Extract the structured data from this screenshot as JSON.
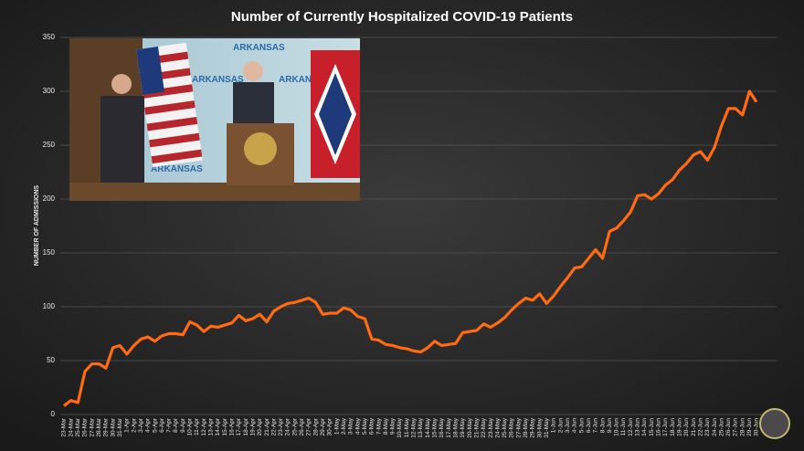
{
  "chart_data": {
    "type": "line",
    "title": "Number of Currently Hospitalized COVID-19 Patients",
    "y_label": "NUMBER OF ADMISSIONS",
    "categories": [
      "23-Mar",
      "24-Mar",
      "25-Mar",
      "26-Mar",
      "27-Mar",
      "28-Mar",
      "29-Mar",
      "30-Mar",
      "31-Mar",
      "1-Apr",
      "2-Apr",
      "3-Apr",
      "4-Apr",
      "5-Apr",
      "6-Apr",
      "7-Apr",
      "8-Apr",
      "9-Apr",
      "10-Apr",
      "11-Apr",
      "12-Apr",
      "13-Apr",
      "14-Apr",
      "15-Apr",
      "16-Apr",
      "17-Apr",
      "18-Apr",
      "19-Apr",
      "20-Apr",
      "21-Apr",
      "22-Apr",
      "23-Apr",
      "24-Apr",
      "25-Apr",
      "26-Apr",
      "27-Apr",
      "28-Apr",
      "29-Apr",
      "30-Apr",
      "1-May",
      "2-May",
      "3-May",
      "4-May",
      "5-May",
      "6-May",
      "7-May",
      "8-May",
      "9-May",
      "10-May",
      "11-May",
      "12-May",
      "13-May",
      "14-May",
      "15-May",
      "16-May",
      "17-May",
      "18-May",
      "19-May",
      "20-May",
      "21-May",
      "22-May",
      "23-May",
      "24-May",
      "25-May",
      "26-May",
      "27-May",
      "28-May",
      "29-May",
      "30-May",
      "31-May",
      "1-Jun",
      "2-Jun",
      "3-Jun",
      "4-Jun",
      "5-Jun",
      "6-Jun",
      "7-Jun",
      "8-Jun",
      "9-Jun",
      "10-Jun",
      "11-Jun",
      "12-Jun",
      "13-Jun",
      "14-Jun",
      "15-Jun",
      "16-Jun",
      "17-Jun",
      "18-Jun",
      "19-Jun",
      "20-Jun",
      "21-Jun",
      "22-Jun",
      "23-Jun",
      "24-Jun",
      "25-Jun",
      "26-Jun",
      "27-Jun",
      "28-Jun",
      "29-Jun",
      "30-Jun"
    ],
    "series": [
      {
        "name": "Hospitalized",
        "color": "#ff6a13",
        "values": [
          8,
          13,
          11,
          40,
          47,
          47,
          43,
          62,
          64,
          56,
          64,
          70,
          72,
          68,
          73,
          75,
          75,
          74,
          86,
          83,
          77,
          82,
          81,
          83,
          85,
          92,
          87,
          89,
          93,
          86,
          96,
          100,
          103,
          104,
          106,
          108,
          104,
          93,
          94,
          94,
          99,
          97,
          91,
          89,
          70,
          69,
          65,
          64,
          62,
          61,
          59,
          58,
          62,
          68,
          64,
          65,
          66,
          76,
          77,
          78,
          84,
          81,
          85,
          90,
          97,
          103,
          108,
          106,
          112,
          103,
          110,
          119,
          127,
          136,
          137,
          145,
          153,
          145,
          170,
          173,
          180,
          188,
          203,
          204,
          200,
          205,
          213,
          218,
          227,
          233,
          241,
          244,
          236,
          248,
          268,
          284,
          284,
          278,
          300,
          290
        ]
      }
    ],
    "ylim": [
      0,
      350
    ],
    "yticks": [
      0,
      50,
      100,
      150,
      200,
      250,
      300,
      350
    ],
    "grid": true
  }
}
